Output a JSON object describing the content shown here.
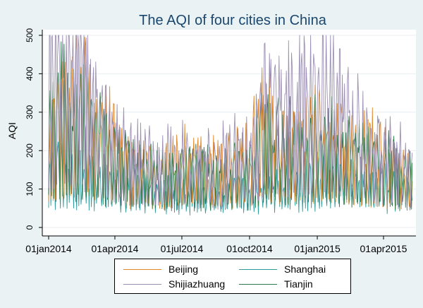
{
  "chart_data": {
    "type": "line",
    "title": "The AQI of four cities in China",
    "ylabel": "AQI",
    "xlabel": "",
    "x_range": [
      "2014-01-01",
      "2015-05-10"
    ],
    "ylim": [
      0,
      500
    ],
    "yticks": [
      0,
      100,
      200,
      300,
      400,
      500
    ],
    "xticks": [
      {
        "date": "2014-01-01",
        "label": "01jan2014"
      },
      {
        "date": "2014-04-01",
        "label": "01apr2014"
      },
      {
        "date": "2014-07-01",
        "label": "01jul2014"
      },
      {
        "date": "2014-10-01",
        "label": "01oct2014"
      },
      {
        "date": "2015-01-01",
        "label": "01jan2015"
      },
      {
        "date": "2015-04-01",
        "label": "01apr2015"
      }
    ],
    "grid": "horizontal",
    "legend_position": "bottom",
    "series": [
      {
        "name": "Beijing",
        "color": "#E0882A",
        "points": [
          [
            "2014-01-01",
            150
          ],
          [
            "2014-01-20",
            220
          ],
          [
            "2014-02-15",
            250
          ],
          [
            "2014-03-05",
            200
          ],
          [
            "2014-04-01",
            160
          ],
          [
            "2014-05-15",
            110
          ],
          [
            "2014-07-01",
            130
          ],
          [
            "2014-08-15",
            120
          ],
          [
            "2014-10-01",
            140
          ],
          [
            "2014-10-20",
            210
          ],
          [
            "2014-11-15",
            170
          ],
          [
            "2015-01-01",
            180
          ],
          [
            "2015-01-20",
            160
          ],
          [
            "2015-02-15",
            170
          ],
          [
            "2015-03-10",
            160
          ],
          [
            "2015-04-01",
            130
          ],
          [
            "2015-05-10",
            110
          ]
        ]
      },
      {
        "name": "Shanghai",
        "color": "#2E9C9C",
        "points": [
          [
            "2014-01-01",
            120
          ],
          [
            "2014-02-15",
            110
          ],
          [
            "2014-04-01",
            90
          ],
          [
            "2014-06-01",
            80
          ],
          [
            "2014-07-01",
            75
          ],
          [
            "2014-08-15",
            70
          ],
          [
            "2014-10-01",
            80
          ],
          [
            "2014-11-15",
            90
          ],
          [
            "2015-01-01",
            110
          ],
          [
            "2015-02-15",
            100
          ],
          [
            "2015-04-01",
            90
          ],
          [
            "2015-05-10",
            80
          ]
        ]
      },
      {
        "name": "Shijiazhuang",
        "color": "#9C8FB4",
        "points": [
          [
            "2014-01-01",
            280
          ],
          [
            "2014-01-15",
            350
          ],
          [
            "2014-02-15",
            320
          ],
          [
            "2014-03-01",
            250
          ],
          [
            "2014-04-01",
            170
          ],
          [
            "2014-05-15",
            130
          ],
          [
            "2014-07-01",
            140
          ],
          [
            "2014-08-15",
            130
          ],
          [
            "2014-10-01",
            160
          ],
          [
            "2014-10-20",
            260
          ],
          [
            "2014-11-15",
            230
          ],
          [
            "2014-12-20",
            280
          ],
          [
            "2015-01-10",
            300
          ],
          [
            "2015-02-15",
            200
          ],
          [
            "2015-04-01",
            150
          ],
          [
            "2015-05-10",
            120
          ]
        ]
      },
      {
        "name": "Tianjin",
        "color": "#2E7A4A",
        "points": [
          [
            "2014-01-01",
            200
          ],
          [
            "2014-01-20",
            220
          ],
          [
            "2014-02-15",
            210
          ],
          [
            "2014-04-01",
            140
          ],
          [
            "2014-05-15",
            110
          ],
          [
            "2014-07-01",
            120
          ],
          [
            "2014-08-15",
            110
          ],
          [
            "2014-10-01",
            120
          ],
          [
            "2014-10-20",
            180
          ],
          [
            "2014-11-15",
            160
          ],
          [
            "2015-01-01",
            170
          ],
          [
            "2015-02-15",
            150
          ],
          [
            "2015-04-01",
            130
          ],
          [
            "2015-05-10",
            110
          ]
        ]
      }
    ]
  }
}
